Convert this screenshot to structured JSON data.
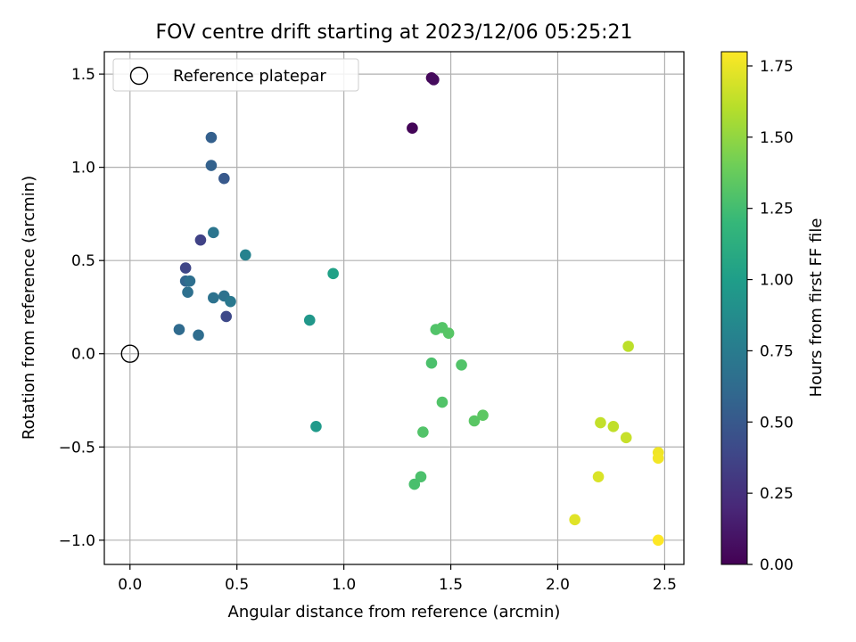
{
  "chart_data": {
    "type": "scatter",
    "title": "FOV centre drift starting at 2023/12/06 05:25:21",
    "xlabel": "Angular distance from reference (arcmin)",
    "ylabel": "Rotation from reference (arcmin)",
    "xlim": [
      -0.12,
      2.59
    ],
    "ylim": [
      -1.13,
      1.62
    ],
    "xticks": [
      {
        "value": 0.0,
        "label": "0.0"
      },
      {
        "value": 0.5,
        "label": "0.5"
      },
      {
        "value": 1.0,
        "label": "1.0"
      },
      {
        "value": 1.5,
        "label": "1.5"
      },
      {
        "value": 2.0,
        "label": "2.0"
      },
      {
        "value": 2.5,
        "label": "2.5"
      }
    ],
    "yticks": [
      {
        "value": -1.0,
        "label": "−1.0"
      },
      {
        "value": -0.5,
        "label": "−0.5"
      },
      {
        "value": 0.0,
        "label": "0.0"
      },
      {
        "value": 0.5,
        "label": "0.5"
      },
      {
        "value": 1.0,
        "label": "1.0"
      },
      {
        "value": 1.5,
        "label": "1.5"
      }
    ],
    "grid": true,
    "legend": {
      "placement": "top-left",
      "entries": [
        {
          "label": "Reference platepar",
          "marker": "open-circle",
          "x": 0.0,
          "y": 0.0
        }
      ]
    },
    "colorbar": {
      "label": "Hours from first FF file",
      "colormap": "viridis",
      "range": [
        0.0,
        1.8
      ],
      "ticks": [
        {
          "value": 0.0,
          "label": "0.00"
        },
        {
          "value": 0.25,
          "label": "0.25"
        },
        {
          "value": 0.5,
          "label": "0.50"
        },
        {
          "value": 0.75,
          "label": "0.75"
        },
        {
          "value": 1.0,
          "label": "1.00"
        },
        {
          "value": 1.25,
          "label": "1.25"
        },
        {
          "value": 1.5,
          "label": "1.50"
        },
        {
          "value": 1.75,
          "label": "1.75"
        }
      ],
      "colors": [
        "#440154",
        "#482878",
        "#3e4989",
        "#31688e",
        "#26828e",
        "#1f9e89",
        "#35b779",
        "#6ece58",
        "#b5de2b",
        "#fde725"
      ]
    },
    "points": [
      {
        "x": 1.32,
        "y": 1.21,
        "t": 0.02
      },
      {
        "x": 1.41,
        "y": 1.48,
        "t": 0.03
      },
      {
        "x": 1.42,
        "y": 1.47,
        "t": 0.05
      },
      {
        "x": 0.33,
        "y": 0.61,
        "t": 0.36
      },
      {
        "x": 0.26,
        "y": 0.46,
        "t": 0.38
      },
      {
        "x": 0.45,
        "y": 0.2,
        "t": 0.4
      },
      {
        "x": 0.44,
        "y": 0.94,
        "t": 0.5
      },
      {
        "x": 0.38,
        "y": 1.16,
        "t": 0.55
      },
      {
        "x": 0.38,
        "y": 1.01,
        "t": 0.56
      },
      {
        "x": 0.26,
        "y": 0.39,
        "t": 0.58
      },
      {
        "x": 0.23,
        "y": 0.13,
        "t": 0.62
      },
      {
        "x": 0.32,
        "y": 0.1,
        "t": 0.64
      },
      {
        "x": 0.28,
        "y": 0.39,
        "t": 0.65
      },
      {
        "x": 0.27,
        "y": 0.33,
        "t": 0.66
      },
      {
        "x": 0.39,
        "y": 0.3,
        "t": 0.68
      },
      {
        "x": 0.44,
        "y": 0.31,
        "t": 0.68
      },
      {
        "x": 0.39,
        "y": 0.65,
        "t": 0.7
      },
      {
        "x": 0.47,
        "y": 0.28,
        "t": 0.72
      },
      {
        "x": 0.54,
        "y": 0.53,
        "t": 0.8
      },
      {
        "x": 0.84,
        "y": 0.18,
        "t": 0.95
      },
      {
        "x": 0.87,
        "y": -0.39,
        "t": 0.97
      },
      {
        "x": 0.95,
        "y": 0.43,
        "t": 1.02
      },
      {
        "x": 1.43,
        "y": 0.13,
        "t": 1.3
      },
      {
        "x": 1.46,
        "y": 0.14,
        "t": 1.31
      },
      {
        "x": 1.49,
        "y": 0.11,
        "t": 1.32
      },
      {
        "x": 1.41,
        "y": -0.05,
        "t": 1.28
      },
      {
        "x": 1.55,
        "y": -0.06,
        "t": 1.3
      },
      {
        "x": 1.46,
        "y": -0.26,
        "t": 1.3
      },
      {
        "x": 1.37,
        "y": -0.42,
        "t": 1.3
      },
      {
        "x": 1.36,
        "y": -0.66,
        "t": 1.28
      },
      {
        "x": 1.33,
        "y": -0.7,
        "t": 1.27
      },
      {
        "x": 1.61,
        "y": -0.36,
        "t": 1.33
      },
      {
        "x": 1.65,
        "y": -0.33,
        "t": 1.34
      },
      {
        "x": 2.33,
        "y": 0.04,
        "t": 1.62
      },
      {
        "x": 2.2,
        "y": -0.37,
        "t": 1.64
      },
      {
        "x": 2.26,
        "y": -0.39,
        "t": 1.63
      },
      {
        "x": 2.32,
        "y": -0.45,
        "t": 1.65
      },
      {
        "x": 2.19,
        "y": -0.66,
        "t": 1.7
      },
      {
        "x": 2.08,
        "y": -0.89,
        "t": 1.72
      },
      {
        "x": 2.47,
        "y": -0.53,
        "t": 1.76
      },
      {
        "x": 2.47,
        "y": -0.56,
        "t": 1.77
      },
      {
        "x": 2.47,
        "y": -1.0,
        "t": 1.8
      }
    ]
  }
}
